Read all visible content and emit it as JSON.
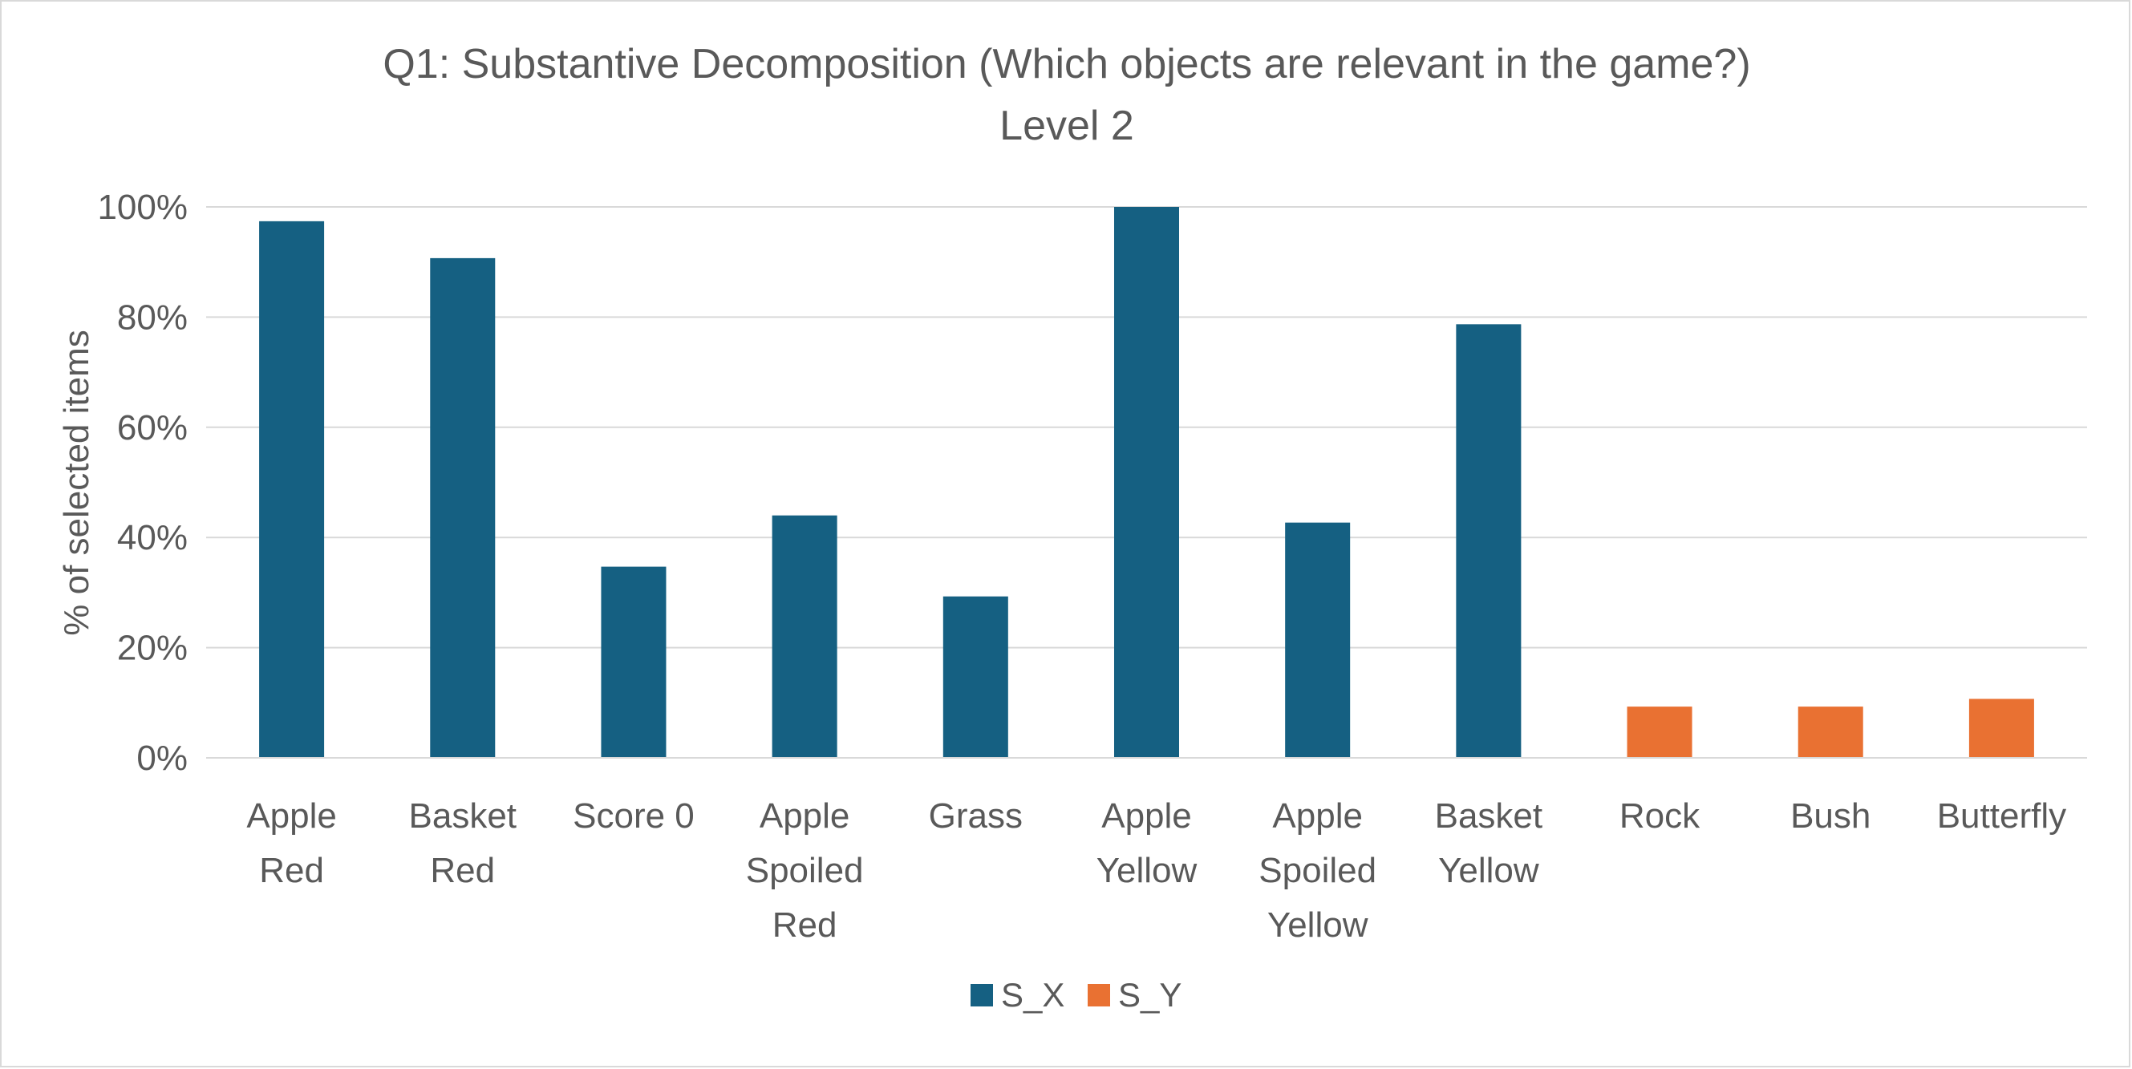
{
  "chart_data": {
    "type": "bar",
    "title_lines": [
      "Q1: Substantive Decomposition (Which objects are relevant in the game?)",
      "Level 2"
    ],
    "ylabel": "% of selected items",
    "ylim": [
      0,
      100
    ],
    "yticks": [
      {
        "value": 0,
        "label": "0%"
      },
      {
        "value": 20,
        "label": "20%"
      },
      {
        "value": 40,
        "label": "40%"
      },
      {
        "value": 60,
        "label": "60%"
      },
      {
        "value": 80,
        "label": "80%"
      },
      {
        "value": 100,
        "label": "100%"
      }
    ],
    "grid": true,
    "legend_position": "bottom",
    "categories": [
      {
        "label": "Apple Red",
        "lines": [
          "Apple",
          "Red"
        ]
      },
      {
        "label": "Basket Red",
        "lines": [
          "Basket",
          "Red"
        ]
      },
      {
        "label": "Score 0",
        "lines": [
          "Score 0"
        ]
      },
      {
        "label": "Apple Spoiled Red",
        "lines": [
          "Apple",
          "Spoiled",
          "Red"
        ]
      },
      {
        "label": "Grass",
        "lines": [
          "Grass"
        ]
      },
      {
        "label": "Apple Yellow",
        "lines": [
          "Apple",
          "Yellow"
        ]
      },
      {
        "label": "Apple Spoiled Yellow",
        "lines": [
          "Apple",
          "Spoiled",
          "Yellow"
        ]
      },
      {
        "label": "Basket Yellow",
        "lines": [
          "Basket",
          "Yellow"
        ]
      },
      {
        "label": "Rock",
        "lines": [
          "Rock"
        ]
      },
      {
        "label": "Bush",
        "lines": [
          "Bush"
        ]
      },
      {
        "label": "Butterfly",
        "lines": [
          "Butterfly"
        ]
      }
    ],
    "series": [
      {
        "name": "S_X",
        "color": "#156082",
        "values": [
          97.4,
          90.7,
          34.7,
          44.0,
          29.3,
          100.0,
          42.7,
          78.7,
          null,
          null,
          null
        ]
      },
      {
        "name": "S_Y",
        "color": "#e97132",
        "values": [
          null,
          null,
          null,
          null,
          null,
          null,
          null,
          null,
          9.3,
          9.3,
          10.7
        ]
      }
    ],
    "colors": {
      "grid": "#d9d9d9",
      "text": "#595959",
      "border": "#d9d9d9"
    }
  }
}
